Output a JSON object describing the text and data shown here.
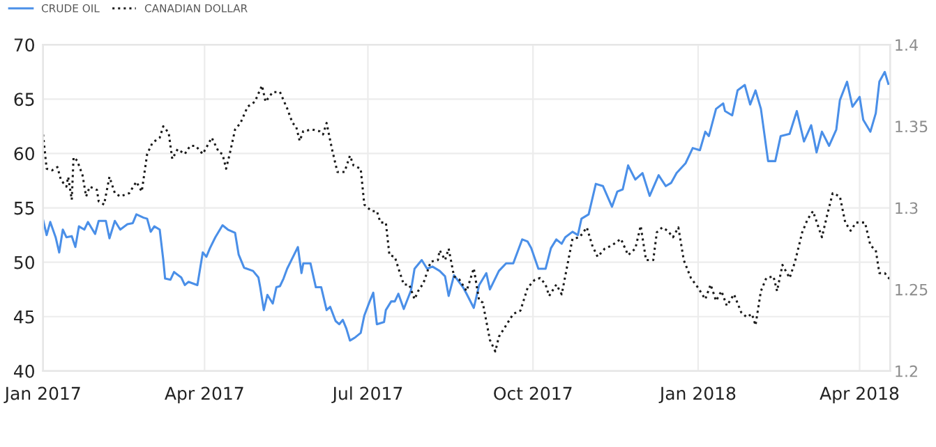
{
  "chart_data": {
    "type": "line",
    "legend": "top left",
    "grid": true,
    "marker": "none",
    "xlim": [
      "2017-01-01",
      "2018-04-18"
    ],
    "xticks": [
      {
        "value": "2017-01-01",
        "label": "Jan 2017"
      },
      {
        "value": "2017-04-01",
        "label": "Apr 2017"
      },
      {
        "value": "2017-07-01",
        "label": "Jul 2017"
      },
      {
        "value": "2017-10-01",
        "label": "Oct 2017"
      },
      {
        "value": "2018-01-01",
        "label": "Jan 2018"
      },
      {
        "value": "2018-04-01",
        "label": "Apr 2018"
      }
    ],
    "ylim": [
      40,
      70
    ],
    "yticks": [
      40,
      45,
      50,
      55,
      60,
      65,
      70
    ],
    "y2lim": [
      1.2,
      1.4
    ],
    "y2ticks": [
      1.2,
      1.25,
      1.3,
      1.35,
      1.4
    ],
    "series": [
      {
        "name": "CRUDE OIL",
        "color": "#4a8fe8",
        "line_style": "solid",
        "x": [
          "2017-01-01",
          "2017-01-03",
          "2017-01-05",
          "2017-01-08",
          "2017-01-10",
          "2017-01-12",
          "2017-01-14",
          "2017-01-17",
          "2017-01-19",
          "2017-01-21",
          "2017-01-24",
          "2017-01-26",
          "2017-01-30",
          "2017-02-01",
          "2017-02-05",
          "2017-02-07",
          "2017-02-10",
          "2017-02-13",
          "2017-02-17",
          "2017-02-20",
          "2017-02-22",
          "2017-02-26",
          "2017-02-28",
          "2017-03-02",
          "2017-03-04",
          "2017-03-07",
          "2017-03-09",
          "2017-03-10",
          "2017-03-13",
          "2017-03-15",
          "2017-03-19",
          "2017-03-21",
          "2017-03-23",
          "2017-03-28",
          "2017-03-31",
          "2017-04-02",
          "2017-04-04",
          "2017-04-07",
          "2017-04-11",
          "2017-04-14",
          "2017-04-18",
          "2017-04-20",
          "2017-04-23",
          "2017-04-28",
          "2017-05-01",
          "2017-05-02",
          "2017-05-04",
          "2017-05-06",
          "2017-05-09",
          "2017-05-11",
          "2017-05-13",
          "2017-05-15",
          "2017-05-17",
          "2017-05-20",
          "2017-05-23",
          "2017-05-25",
          "2017-05-26",
          "2017-05-30",
          "2017-06-02",
          "2017-06-05",
          "2017-06-08",
          "2017-06-10",
          "2017-06-13",
          "2017-06-15",
          "2017-06-17",
          "2017-06-19",
          "2017-06-21",
          "2017-06-24",
          "2017-06-27",
          "2017-06-29",
          "2017-07-02",
          "2017-07-04",
          "2017-07-06",
          "2017-07-10",
          "2017-07-11",
          "2017-07-14",
          "2017-07-16",
          "2017-07-18",
          "2017-07-21",
          "2017-07-25",
          "2017-07-27",
          "2017-07-31",
          "2017-08-03",
          "2017-08-06",
          "2017-08-10",
          "2017-08-13",
          "2017-08-15",
          "2017-08-18",
          "2017-08-23",
          "2017-08-25",
          "2017-08-29",
          "2017-09-01",
          "2017-09-05",
          "2017-09-07",
          "2017-09-12",
          "2017-09-16",
          "2017-09-20",
          "2017-09-25",
          "2017-09-28",
          "2017-09-30",
          "2017-10-04",
          "2017-10-08",
          "2017-10-11",
          "2017-10-14",
          "2017-10-17",
          "2017-10-19",
          "2017-10-23",
          "2017-10-26",
          "2017-10-28",
          "2017-11-01",
          "2017-11-05",
          "2017-11-09",
          "2017-11-14",
          "2017-11-17",
          "2017-11-20",
          "2017-11-23",
          "2017-11-27",
          "2017-12-01",
          "2017-12-05",
          "2017-12-10",
          "2017-12-14",
          "2017-12-17",
          "2017-12-20",
          "2017-12-25",
          "2017-12-29",
          "2018-01-02",
          "2018-01-05",
          "2018-01-07",
          "2018-01-11",
          "2018-01-15",
          "2018-01-16",
          "2018-01-20",
          "2018-01-23",
          "2018-01-27",
          "2018-01-30",
          "2018-02-02",
          "2018-02-05",
          "2018-02-09",
          "2018-02-13",
          "2018-02-16",
          "2018-02-21",
          "2018-02-25",
          "2018-03-01",
          "2018-03-05",
          "2018-03-08",
          "2018-03-11",
          "2018-03-15",
          "2018-03-19",
          "2018-03-21",
          "2018-03-25",
          "2018-03-28",
          "2018-04-01",
          "2018-04-03",
          "2018-04-07",
          "2018-04-10",
          "2018-04-12",
          "2018-04-15",
          "2018-04-17"
        ],
        "values": [
          53.9,
          52.5,
          53.7,
          52.3,
          50.9,
          53.0,
          52.3,
          52.4,
          51.4,
          53.3,
          53.0,
          53.7,
          52.6,
          53.8,
          53.8,
          52.2,
          53.8,
          53.0,
          53.5,
          53.6,
          54.4,
          54.1,
          54.0,
          52.8,
          53.3,
          53.0,
          50.2,
          48.5,
          48.4,
          49.1,
          48.6,
          47.9,
          48.2,
          47.9,
          50.9,
          50.5,
          51.3,
          52.3,
          53.4,
          53.0,
          52.7,
          50.7,
          49.5,
          49.2,
          48.6,
          47.7,
          45.6,
          47.0,
          46.2,
          47.7,
          47.8,
          48.5,
          49.4,
          50.4,
          51.4,
          49.0,
          49.9,
          49.9,
          47.7,
          47.7,
          45.6,
          45.9,
          44.6,
          44.3,
          44.7,
          43.9,
          42.8,
          43.1,
          43.5,
          45.1,
          46.4,
          47.2,
          44.3,
          44.5,
          45.6,
          46.4,
          46.4,
          47.1,
          45.7,
          47.4,
          49.4,
          50.2,
          49.4,
          49.6,
          49.2,
          48.7,
          46.9,
          48.8,
          47.7,
          47.1,
          45.8,
          47.9,
          49.0,
          47.5,
          49.2,
          49.9,
          49.9,
          52.1,
          51.9,
          51.3,
          49.4,
          49.4,
          51.3,
          52.1,
          51.7,
          52.3,
          52.8,
          52.5,
          54.0,
          54.4,
          57.2,
          57.0,
          55.1,
          56.5,
          56.7,
          58.9,
          57.6,
          58.2,
          56.1,
          58.0,
          57.0,
          57.3,
          58.2,
          59.1,
          60.5,
          60.3,
          62.0,
          61.6,
          64.1,
          64.6,
          63.9,
          63.5,
          65.8,
          66.3,
          64.5,
          65.8,
          64.1,
          59.3,
          59.3,
          61.6,
          61.8,
          63.9,
          61.1,
          62.6,
          60.1,
          62.0,
          60.7,
          62.2,
          64.9,
          66.6,
          64.3,
          65.2,
          63.1,
          62.0,
          63.7,
          66.6,
          67.5,
          66.4
        ]
      },
      {
        "name": "CANADIAN DOLLAR",
        "color": "#1a1a1a",
        "axis": "y2",
        "line_style": "dotted",
        "x": [
          "2017-01-01",
          "2017-01-03",
          "2017-01-06",
          "2017-01-09",
          "2017-01-11",
          "2017-01-14",
          "2017-01-15",
          "2017-01-17",
          "2017-01-18",
          "2017-01-20",
          "2017-01-23",
          "2017-01-25",
          "2017-01-27",
          "2017-01-31",
          "2017-02-01",
          "2017-02-04",
          "2017-02-07",
          "2017-02-10",
          "2017-02-13",
          "2017-02-18",
          "2017-02-22",
          "2017-02-25",
          "2017-02-28",
          "2017-03-03",
          "2017-03-07",
          "2017-03-09",
          "2017-03-12",
          "2017-03-14",
          "2017-03-17",
          "2017-03-21",
          "2017-03-24",
          "2017-03-27",
          "2017-03-31",
          "2017-04-05",
          "2017-04-09",
          "2017-04-11",
          "2017-04-13",
          "2017-04-15",
          "2017-04-18",
          "2017-04-21",
          "2017-04-25",
          "2017-04-29",
          "2017-05-03",
          "2017-05-05",
          "2017-05-09",
          "2017-05-13",
          "2017-05-17",
          "2017-05-20",
          "2017-05-22",
          "2017-05-24",
          "2017-05-26",
          "2017-05-31",
          "2017-06-04",
          "2017-06-06",
          "2017-06-08",
          "2017-06-11",
          "2017-06-14",
          "2017-06-18",
          "2017-06-21",
          "2017-06-23",
          "2017-06-27",
          "2017-06-29",
          "2017-07-03",
          "2017-07-06",
          "2017-07-08",
          "2017-07-11",
          "2017-07-13",
          "2017-07-16",
          "2017-07-18",
          "2017-07-21",
          "2017-07-24",
          "2017-07-27",
          "2017-07-29",
          "2017-08-01",
          "2017-08-05",
          "2017-08-09",
          "2017-08-10",
          "2017-08-13",
          "2017-08-15",
          "2017-08-18",
          "2017-08-21",
          "2017-08-25",
          "2017-08-29",
          "2017-09-01",
          "2017-09-03",
          "2017-09-07",
          "2017-09-10",
          "2017-09-12",
          "2017-09-16",
          "2017-09-20",
          "2017-09-24",
          "2017-09-28",
          "2017-10-02",
          "2017-10-05",
          "2017-10-08",
          "2017-10-10",
          "2017-10-14",
          "2017-10-17",
          "2017-10-20",
          "2017-10-23",
          "2017-10-27",
          "2017-10-31",
          "2017-11-03",
          "2017-11-06",
          "2017-11-10",
          "2017-11-14",
          "2017-11-19",
          "2017-11-23",
          "2017-11-27",
          "2017-11-30",
          "2017-12-03",
          "2017-12-07",
          "2017-12-09",
          "2017-12-12",
          "2017-12-15",
          "2017-12-18",
          "2017-12-21",
          "2017-12-24",
          "2017-12-28",
          "2018-01-01",
          "2018-01-05",
          "2018-01-08",
          "2018-01-11",
          "2018-01-14",
          "2018-01-17",
          "2018-01-21",
          "2018-01-25",
          "2018-01-28",
          "2018-01-31",
          "2018-02-02",
          "2018-02-05",
          "2018-02-08",
          "2018-02-12",
          "2018-02-14",
          "2018-02-17",
          "2018-02-21",
          "2018-02-24",
          "2018-02-28",
          "2018-03-03",
          "2018-03-06",
          "2018-03-11",
          "2018-03-14",
          "2018-03-17",
          "2018-03-21",
          "2018-03-24",
          "2018-03-27",
          "2018-03-30",
          "2018-04-04",
          "2018-04-07",
          "2018-04-10",
          "2018-04-12",
          "2018-04-15",
          "2018-04-18"
        ],
        "values": [
          1.345,
          1.324,
          1.323,
          1.325,
          1.317,
          1.313,
          1.319,
          1.305,
          1.331,
          1.329,
          1.32,
          1.307,
          1.313,
          1.311,
          1.304,
          1.302,
          1.319,
          1.309,
          1.307,
          1.309,
          1.316,
          1.31,
          1.333,
          1.34,
          1.343,
          1.35,
          1.346,
          1.33,
          1.336,
          1.333,
          1.338,
          1.338,
          1.333,
          1.343,
          1.334,
          1.333,
          1.324,
          1.333,
          1.348,
          1.352,
          1.362,
          1.365,
          1.375,
          1.365,
          1.371,
          1.371,
          1.361,
          1.352,
          1.35,
          1.341,
          1.347,
          1.348,
          1.347,
          1.345,
          1.352,
          1.336,
          1.322,
          1.322,
          1.332,
          1.326,
          1.324,
          1.302,
          1.298,
          1.298,
          1.291,
          1.291,
          1.271,
          1.27,
          1.263,
          1.253,
          1.253,
          1.244,
          1.249,
          1.254,
          1.267,
          1.268,
          1.274,
          1.268,
          1.275,
          1.258,
          1.256,
          1.249,
          1.263,
          1.243,
          1.242,
          1.219,
          1.212,
          1.221,
          1.228,
          1.235,
          1.237,
          1.251,
          1.256,
          1.257,
          1.253,
          1.246,
          1.253,
          1.247,
          1.264,
          1.281,
          1.282,
          1.288,
          1.277,
          1.27,
          1.275,
          1.277,
          1.281,
          1.271,
          1.275,
          1.289,
          1.268,
          1.268,
          1.285,
          1.288,
          1.286,
          1.282,
          1.288,
          1.268,
          1.257,
          1.251,
          1.244,
          1.253,
          1.243,
          1.249,
          1.24,
          1.247,
          1.236,
          1.233,
          1.235,
          1.228,
          1.249,
          1.257,
          1.258,
          1.249,
          1.265,
          1.257,
          1.267,
          1.285,
          1.293,
          1.298,
          1.282,
          1.296,
          1.309,
          1.307,
          1.291,
          1.286,
          1.291,
          1.291,
          1.277,
          1.274,
          1.26,
          1.26,
          1.256
        ]
      }
    ]
  }
}
